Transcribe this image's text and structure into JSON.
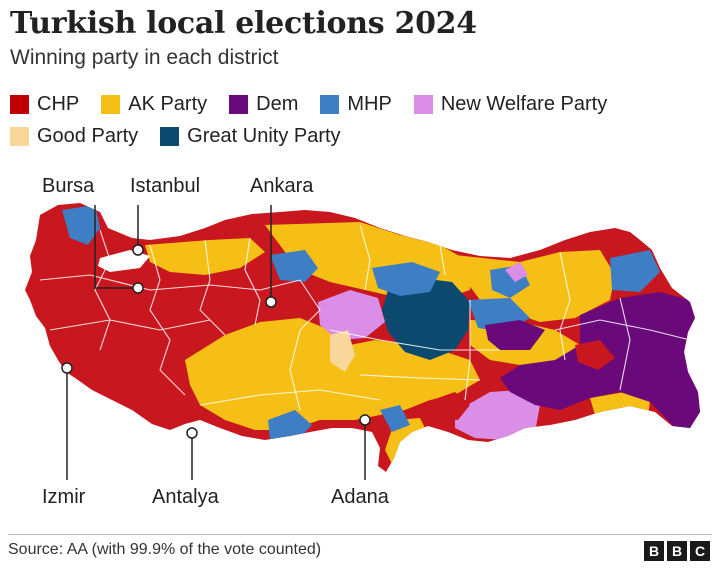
{
  "title": "Turkish local elections 2024",
  "subtitle": "Winning party in each district",
  "legend": {
    "row1": [
      {
        "label": "CHP",
        "color": "#c00000"
      },
      {
        "label": "AK Party",
        "color": "#f5bf15"
      },
      {
        "label": "Dem",
        "color": "#6a0a7a"
      },
      {
        "label": "MHP",
        "color": "#3d7ec5"
      },
      {
        "label": "New Welfare Party",
        "color": "#da8ee8"
      }
    ],
    "row2": [
      {
        "label": "Good Party",
        "color": "#f7d79a"
      },
      {
        "label": "Great Unity Party",
        "color": "#0b4a6e"
      }
    ]
  },
  "cities": {
    "bursa": "Bursa",
    "istanbul": "Istanbul",
    "ankara": "Ankara",
    "izmir": "Izmir",
    "antalya": "Antalya",
    "adana": "Adana"
  },
  "source": "Source: AA (with 99.9% of the vote counted)",
  "logo": [
    "B",
    "B",
    "C"
  ]
}
